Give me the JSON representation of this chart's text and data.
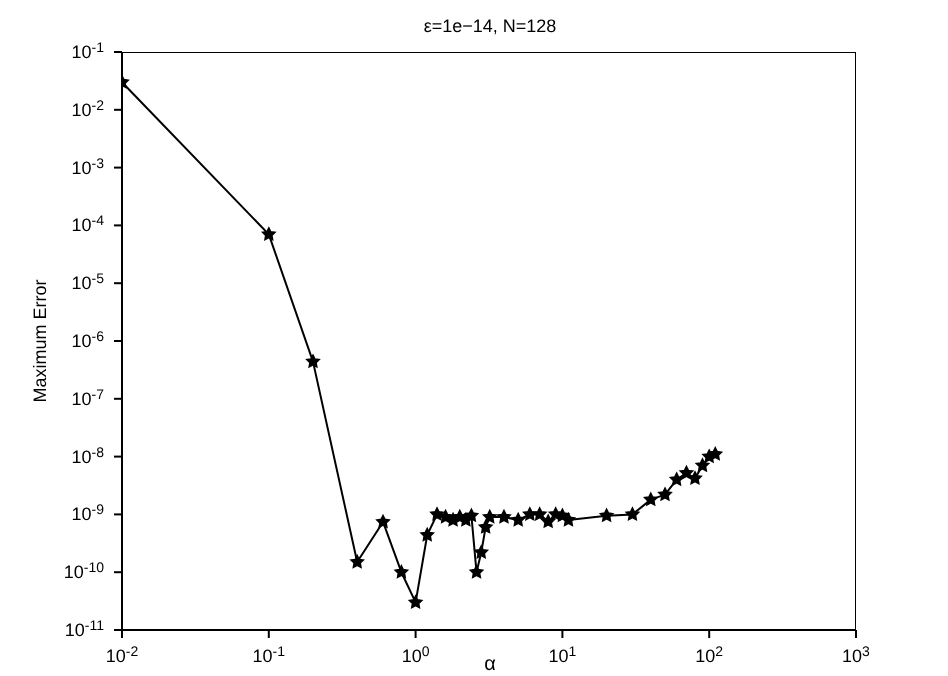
{
  "chart_data": {
    "type": "line",
    "title": "ε=1e−14, N=128",
    "xlabel": "α",
    "ylabel": "Maximum Error",
    "log": "xy",
    "marker": "star",
    "line_style": "solid",
    "grid": false,
    "legend": false,
    "x": [
      0.01,
      0.1,
      0.2,
      0.4,
      0.6,
      0.8,
      1.0,
      1.2,
      1.4,
      1.6,
      1.8,
      2.0,
      2.2,
      2.4,
      2.6,
      2.8,
      3.0,
      3.2,
      4,
      5,
      6,
      7,
      8,
      9,
      10,
      11,
      20,
      30,
      40,
      50,
      60,
      70,
      80,
      90,
      100,
      110
    ],
    "series": [
      {
        "color": "#000000",
        "values": [
          0.03,
          7e-05,
          4.4e-07,
          1.5e-10,
          7.4e-10,
          1e-10,
          3e-11,
          4.4e-10,
          1e-09,
          9e-10,
          8e-10,
          9e-10,
          8e-10,
          9.5e-10,
          1e-10,
          2.2e-10,
          6e-10,
          9e-10,
          9e-10,
          8e-10,
          1e-09,
          1e-09,
          7.5e-10,
          1e-09,
          9.5e-10,
          8e-10,
          9.5e-10,
          1e-09,
          1.8e-09,
          2.2e-09,
          4e-09,
          5.2e-09,
          4.2e-09,
          7e-09,
          1e-08,
          1.1e-08
        ]
      }
    ],
    "xlim": [
      0.01,
      1000
    ],
    "xticks": [
      {
        "value": 0.01,
        "label": "10$^{-2}$"
      },
      {
        "value": 0.1,
        "label": "10$^{-1}$"
      },
      {
        "value": 1,
        "label": "10$^{0}$"
      },
      {
        "value": 10,
        "label": "10$^{1}$"
      },
      {
        "value": 100,
        "label": "10$^{2}$"
      },
      {
        "value": 1000,
        "label": "10$^{3}$"
      }
    ],
    "ylim": [
      1e-11,
      0.1
    ],
    "yticks": [
      {
        "value": 1e-11,
        "label": "10$^{-11}$"
      },
      {
        "value": 1e-10,
        "label": "10$^{-10}$"
      },
      {
        "value": 1e-09,
        "label": "10$^{-9}$"
      },
      {
        "value": 1e-08,
        "label": "10$^{-8}$"
      },
      {
        "value": 1e-07,
        "label": "10$^{-7}$"
      },
      {
        "value": 1e-06,
        "label": "10$^{-6}$"
      },
      {
        "value": 1e-05,
        "label": "10$^{-5}$"
      },
      {
        "value": 0.0001,
        "label": "10$^{-4}$"
      },
      {
        "value": 0.001,
        "label": "10$^{-3}$"
      },
      {
        "value": 0.01,
        "label": "10$^{-2}$"
      },
      {
        "value": 0.1,
        "label": "10$^{-1}$"
      }
    ]
  }
}
